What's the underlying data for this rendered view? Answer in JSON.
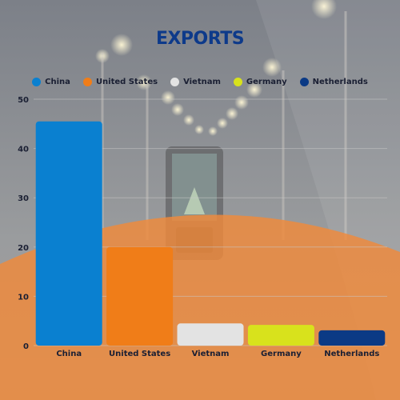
{
  "title": "EXPORTS",
  "colors": {
    "title": "#0d3a8a",
    "axis_text": "#1a1f33",
    "gridline": "#c9c9c9",
    "orange_overlay": "#f08a3a",
    "photo_bg": "#8a8f96"
  },
  "legend": [
    {
      "label": "China",
      "color": "#0a80d0"
    },
    {
      "label": "United States",
      "color": "#f07d18"
    },
    {
      "label": "Vietnam",
      "color": "#e3e3e3"
    },
    {
      "label": "Germany",
      "color": "#d8e21c"
    },
    {
      "label": "Netherlands",
      "color": "#0b3a85"
    }
  ],
  "chart_data": {
    "type": "bar",
    "title": "EXPORTS",
    "categories": [
      "China",
      "United States",
      "Vietnam",
      "Germany",
      "Netherlands"
    ],
    "values": [
      45.5,
      20,
      4.5,
      4.2,
      3.1
    ],
    "series_colors": [
      "#0a80d0",
      "#f07d18",
      "#e3e3e3",
      "#d8e21c",
      "#0b3a85"
    ],
    "xlabel": "",
    "ylabel": "",
    "ylim": [
      0,
      50
    ],
    "yticks": [
      0,
      10,
      20,
      30,
      40,
      50
    ],
    "grid": true,
    "legend_position": "top"
  }
}
